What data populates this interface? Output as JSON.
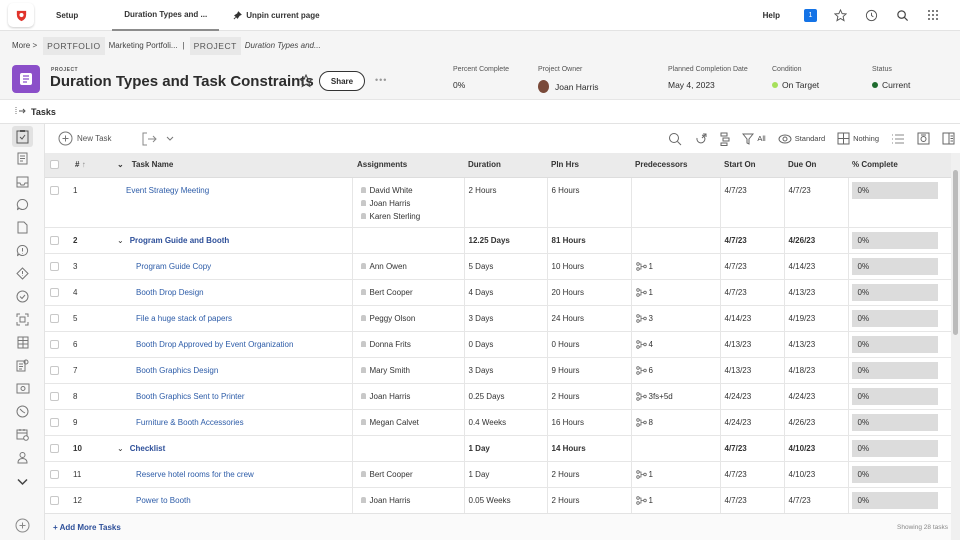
{
  "topbar": {
    "tabs": [
      {
        "label": "Setup"
      },
      {
        "label": "Duration Types and ..."
      }
    ],
    "unpin_label": "Unpin current page",
    "help_label": "Help",
    "notification_count": "1"
  },
  "breadcrumb": {
    "more_label": "More",
    "more_sep": ">",
    "portfolio_tag": "PORTFOLIO",
    "portfolio_name": "Marketing Portfoli...",
    "sep": "|",
    "project_tag": "PROJECT",
    "project_name": "Duration Types and..."
  },
  "project": {
    "label": "PROJECT",
    "title": "Duration Types and Task Constraints",
    "share_label": "Share",
    "more_label": "•••",
    "percent_complete": {
      "label": "Percent Complete",
      "value": "0%"
    },
    "owner": {
      "label": "Project Owner",
      "value": "Joan Harris"
    },
    "planned_completion": {
      "label": "Planned Completion Date",
      "value": "May 4, 2023"
    },
    "condition": {
      "label": "Condition",
      "value": "On Target",
      "color": "#a6e05a"
    },
    "status": {
      "label": "Status",
      "value": "Current",
      "color": "#1e6b2e"
    }
  },
  "section": {
    "title": "Tasks"
  },
  "toolbar": {
    "new_task_label": "New Task",
    "filter_label": "All",
    "view_label": "Standard",
    "grouping_label": "Nothing"
  },
  "table": {
    "columns": [
      "#",
      "Task Name",
      "Assignments",
      "Duration",
      "Pln Hrs",
      "Predecessors",
      "Start On",
      "Due On",
      "% Complete"
    ],
    "sort_indicator": "↑",
    "rows": [
      {
        "num": "1",
        "name": "Event Strategy Meeting",
        "parent": false,
        "indent": 1,
        "assignments": [
          "David White",
          "Joan Harris",
          "Karen Sterling"
        ],
        "duration": "2 Hours",
        "pln_hrs": "6 Hours",
        "pred": "",
        "start": "4/7/23",
        "due": "4/7/23",
        "pct": "0%"
      },
      {
        "num": "2",
        "name": "Program Guide and Booth",
        "parent": true,
        "indent": 0,
        "assignments": [],
        "duration": "12.25 Days",
        "pln_hrs": "81 Hours",
        "pred": "",
        "start": "4/7/23",
        "due": "4/26/23",
        "pct": "0%"
      },
      {
        "num": "3",
        "name": "Program Guide Copy",
        "parent": false,
        "indent": 2,
        "assignments": [
          "Ann Owen"
        ],
        "duration": "5 Days",
        "pln_hrs": "10 Hours",
        "pred": "1",
        "start": "4/7/23",
        "due": "4/14/23",
        "pct": "0%"
      },
      {
        "num": "4",
        "name": "Booth Drop Design",
        "parent": false,
        "indent": 2,
        "assignments": [
          "Bert Cooper"
        ],
        "duration": "4 Days",
        "pln_hrs": "20 Hours",
        "pred": "1",
        "start": "4/7/23",
        "due": "4/13/23",
        "pct": "0%"
      },
      {
        "num": "5",
        "name": "File a huge stack of papers",
        "parent": false,
        "indent": 2,
        "assignments": [
          "Peggy Olson"
        ],
        "duration": "3 Days",
        "pln_hrs": "24 Hours",
        "pred": "3",
        "start": "4/14/23",
        "due": "4/19/23",
        "pct": "0%"
      },
      {
        "num": "6",
        "name": "Booth Drop Approved by Event Organization",
        "parent": false,
        "indent": 2,
        "assignments": [
          "Donna Frits"
        ],
        "duration": "0 Days",
        "pln_hrs": "0 Hours",
        "pred": "4",
        "start": "4/13/23",
        "due": "4/13/23",
        "pct": "0%"
      },
      {
        "num": "7",
        "name": "Booth Graphics Design",
        "parent": false,
        "indent": 2,
        "assignments": [
          "Mary Smith"
        ],
        "duration": "3 Days",
        "pln_hrs": "9 Hours",
        "pred": "6",
        "start": "4/13/23",
        "due": "4/18/23",
        "pct": "0%"
      },
      {
        "num": "8",
        "name": "Booth Graphics Sent to Printer",
        "parent": false,
        "indent": 2,
        "assignments": [
          "Joan Harris"
        ],
        "duration": "0.25 Days",
        "pln_hrs": "2 Hours",
        "pred": "3fs+5d",
        "start": "4/24/23",
        "due": "4/24/23",
        "pct": "0%"
      },
      {
        "num": "9",
        "name": "Furniture & Booth Accessories",
        "parent": false,
        "indent": 2,
        "assignments": [
          "Megan Calvet"
        ],
        "duration": "0.4 Weeks",
        "pln_hrs": "16 Hours",
        "pred": "8",
        "start": "4/24/23",
        "due": "4/26/23",
        "pct": "0%"
      },
      {
        "num": "10",
        "name": "Checklist",
        "parent": true,
        "indent": 0,
        "assignments": [],
        "duration": "1 Day",
        "pln_hrs": "14 Hours",
        "pred": "",
        "start": "4/7/23",
        "due": "4/10/23",
        "pct": "0%"
      },
      {
        "num": "11",
        "name": "Reserve hotel rooms for the crew",
        "parent": false,
        "indent": 2,
        "assignments": [
          "Bert Cooper"
        ],
        "duration": "1 Day",
        "pln_hrs": "2 Hours",
        "pred": "1",
        "start": "4/7/23",
        "due": "4/10/23",
        "pct": "0%"
      },
      {
        "num": "12",
        "name": "Power to Booth",
        "parent": false,
        "indent": 2,
        "assignments": [
          "Joan Harris"
        ],
        "duration": "0.05 Weeks",
        "pln_hrs": "2 Hours",
        "pred": "1",
        "start": "4/7/23",
        "due": "4/7/23",
        "pct": "0%"
      }
    ]
  },
  "footer": {
    "add_more_label": "+ Add More Tasks",
    "showing_label": "Showing 28 tasks"
  },
  "leftrail": {
    "icons": [
      "tasks-icon",
      "document-icon",
      "inbox-icon",
      "updates-icon",
      "file-icon",
      "issues-icon",
      "risk-icon",
      "approvals-icon",
      "proof-icon",
      "list-icon",
      "report-icon",
      "finance-icon",
      "time-icon",
      "calendar-icon",
      "people-icon",
      "chevron-down-icon"
    ]
  }
}
